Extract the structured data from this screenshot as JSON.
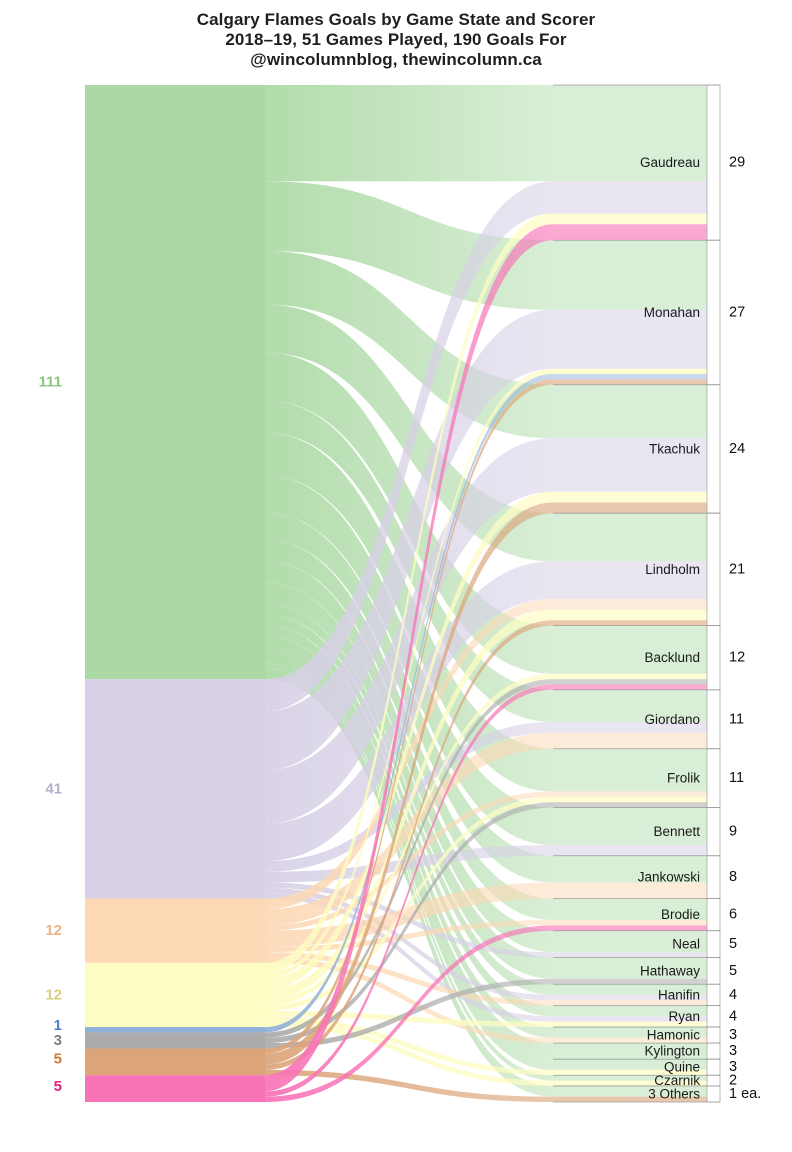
{
  "title": {
    "line1": "Calgary Flames Goals by Game State and Scorer",
    "line2": "2018–19, 51 Games Played, 190 Goals For",
    "line3": "@wincolumnblog, thewincolumn.ca"
  },
  "chart_data": {
    "type": "sankey",
    "title": "Calgary Flames Goals by Game State and Scorer",
    "subtitle": "2018–19, 51 Games Played, 190 Goals For",
    "credit": "@wincolumnblog, thewincolumn.ca",
    "total_goals": 190,
    "games_played": 51,
    "sources": [
      {
        "id": "green",
        "value": 111,
        "label": "111",
        "color": "#abd9a4",
        "label_color": "#8bc87e",
        "end_opacity": 0.45
      },
      {
        "id": "lavender",
        "value": 41,
        "label": "41",
        "color": "#d7d0e6",
        "label_color": "#b7aecf",
        "end_opacity": 0.55
      },
      {
        "id": "peach",
        "value": 12,
        "label": "12",
        "color": "#fcd8b4",
        "label_color": "#eeb287",
        "end_opacity": 0.5
      },
      {
        "id": "yellow",
        "value": 12,
        "label": "12",
        "color": "#fdfcc2",
        "label_color": "#d8d07e",
        "end_opacity": 0.7
      },
      {
        "id": "blue",
        "value": 1,
        "label": "1",
        "color": "#8fb0d8",
        "label_color": "#4a7fd4",
        "end_opacity": 0.5,
        "label_dy": -4
      },
      {
        "id": "gray",
        "value": 3,
        "label": "3",
        "color": "#ababab",
        "label_color": "#7f7f7f",
        "end_opacity": 0.55
      },
      {
        "id": "tan",
        "value": 5,
        "label": "5",
        "color": "#dba479",
        "label_color": "#cd7c35",
        "end_opacity": 0.6,
        "label_dy": -3
      },
      {
        "id": "pink",
        "value": 5,
        "label": "5",
        "color": "#f873b6",
        "label_color": "#e0207f",
        "end_opacity": 0.62,
        "label_dy": -2
      }
    ],
    "targets": [
      {
        "name": "Gaudreau",
        "total": 29,
        "count_label": "29"
      },
      {
        "name": "Monahan",
        "total": 27,
        "count_label": "27"
      },
      {
        "name": "Tkachuk",
        "total": 24,
        "count_label": "24"
      },
      {
        "name": "Lindholm",
        "total": 21,
        "count_label": "21"
      },
      {
        "name": "Backlund",
        "total": 12,
        "count_label": "12"
      },
      {
        "name": "Giordano",
        "total": 11,
        "count_label": "11"
      },
      {
        "name": "Frolik",
        "total": 11,
        "count_label": "11"
      },
      {
        "name": "Bennett",
        "total": 9,
        "count_label": "9"
      },
      {
        "name": "Jankowski",
        "total": 8,
        "count_label": "8"
      },
      {
        "name": "Brodie",
        "total": 6,
        "count_label": "6"
      },
      {
        "name": "Neal",
        "total": 5,
        "count_label": "5"
      },
      {
        "name": "Hathaway",
        "total": 5,
        "count_label": "5"
      },
      {
        "name": "Hanifin",
        "total": 4,
        "count_label": "4"
      },
      {
        "name": "Ryan",
        "total": 4,
        "count_label": "4"
      },
      {
        "name": "Hamonic",
        "total": 3,
        "count_label": "3"
      },
      {
        "name": "Kylington",
        "total": 3,
        "count_label": "3"
      },
      {
        "name": "Quine",
        "total": 3,
        "count_label": "3"
      },
      {
        "name": "Czarnik",
        "total": 2,
        "count_label": "2"
      },
      {
        "name": "3 Others",
        "total": 3,
        "count_label": "1 ea."
      }
    ],
    "flows": [
      {
        "source": "green",
        "target": "Gaudreau",
        "value": 18
      },
      {
        "source": "green",
        "target": "Monahan",
        "value": 13
      },
      {
        "source": "green",
        "target": "Tkachuk",
        "value": 10
      },
      {
        "source": "green",
        "target": "Lindholm",
        "value": 9
      },
      {
        "source": "green",
        "target": "Backlund",
        "value": 9
      },
      {
        "source": "green",
        "target": "Giordano",
        "value": 6
      },
      {
        "source": "green",
        "target": "Frolik",
        "value": 8
      },
      {
        "source": "green",
        "target": "Bennett",
        "value": 7
      },
      {
        "source": "green",
        "target": "Jankowski",
        "value": 5
      },
      {
        "source": "green",
        "target": "Brodie",
        "value": 4
      },
      {
        "source": "green",
        "target": "Neal",
        "value": 4
      },
      {
        "source": "green",
        "target": "Hathaway",
        "value": 4
      },
      {
        "source": "green",
        "target": "Hanifin",
        "value": 2
      },
      {
        "source": "green",
        "target": "Ryan",
        "value": 2
      },
      {
        "source": "green",
        "target": "Hamonic",
        "value": 2
      },
      {
        "source": "green",
        "target": "Kylington",
        "value": 3
      },
      {
        "source": "green",
        "target": "Quine",
        "value": 2
      },
      {
        "source": "green",
        "target": "Czarnik",
        "value": 1
      },
      {
        "source": "green",
        "target": "3 Others",
        "value": 2
      },
      {
        "source": "lavender",
        "target": "Gaudreau",
        "value": 6
      },
      {
        "source": "lavender",
        "target": "Monahan",
        "value": 11
      },
      {
        "source": "lavender",
        "target": "Tkachuk",
        "value": 10
      },
      {
        "source": "lavender",
        "target": "Lindholm",
        "value": 7
      },
      {
        "source": "lavender",
        "target": "Giordano",
        "value": 2
      },
      {
        "source": "lavender",
        "target": "Bennett",
        "value": 2
      },
      {
        "source": "lavender",
        "target": "Neal",
        "value": 1
      },
      {
        "source": "lavender",
        "target": "Hanifin",
        "value": 1
      },
      {
        "source": "lavender",
        "target": "Ryan",
        "value": 1
      },
      {
        "source": "peach",
        "target": "Lindholm",
        "value": 2
      },
      {
        "source": "peach",
        "target": "Giordano",
        "value": 3
      },
      {
        "source": "peach",
        "target": "Frolik",
        "value": 1
      },
      {
        "source": "peach",
        "target": "Jankowski",
        "value": 3
      },
      {
        "source": "peach",
        "target": "Brodie",
        "value": 1
      },
      {
        "source": "peach",
        "target": "Hanifin",
        "value": 1
      },
      {
        "source": "peach",
        "target": "Hamonic",
        "value": 1
      },
      {
        "source": "yellow",
        "target": "Gaudreau",
        "value": 2
      },
      {
        "source": "yellow",
        "target": "Monahan",
        "value": 1
      },
      {
        "source": "yellow",
        "target": "Tkachuk",
        "value": 2
      },
      {
        "source": "yellow",
        "target": "Lindholm",
        "value": 2
      },
      {
        "source": "yellow",
        "target": "Backlund",
        "value": 1
      },
      {
        "source": "yellow",
        "target": "Frolik",
        "value": 1
      },
      {
        "source": "yellow",
        "target": "Ryan",
        "value": 1
      },
      {
        "source": "yellow",
        "target": "Quine",
        "value": 1
      },
      {
        "source": "yellow",
        "target": "Czarnik",
        "value": 1
      },
      {
        "source": "blue",
        "target": "Monahan",
        "value": 1
      },
      {
        "source": "gray",
        "target": "Backlund",
        "value": 1
      },
      {
        "source": "gray",
        "target": "Frolik",
        "value": 1
      },
      {
        "source": "gray",
        "target": "Hathaway",
        "value": 1
      },
      {
        "source": "tan",
        "target": "Monahan",
        "value": 1
      },
      {
        "source": "tan",
        "target": "Tkachuk",
        "value": 2
      },
      {
        "source": "tan",
        "target": "Lindholm",
        "value": 1
      },
      {
        "source": "tan",
        "target": "3 Others",
        "value": 1
      },
      {
        "source": "pink",
        "target": "Gaudreau",
        "value": 3
      },
      {
        "source": "pink",
        "target": "Backlund",
        "value": 1
      },
      {
        "source": "pink",
        "target": "Brodie",
        "value": 1
      }
    ],
    "layout_hints": {
      "left_bar_labels": "values only, colored to match segments",
      "right_labels": "player name inside band, goal count outside node column",
      "grid": false,
      "legend": false
    }
  }
}
